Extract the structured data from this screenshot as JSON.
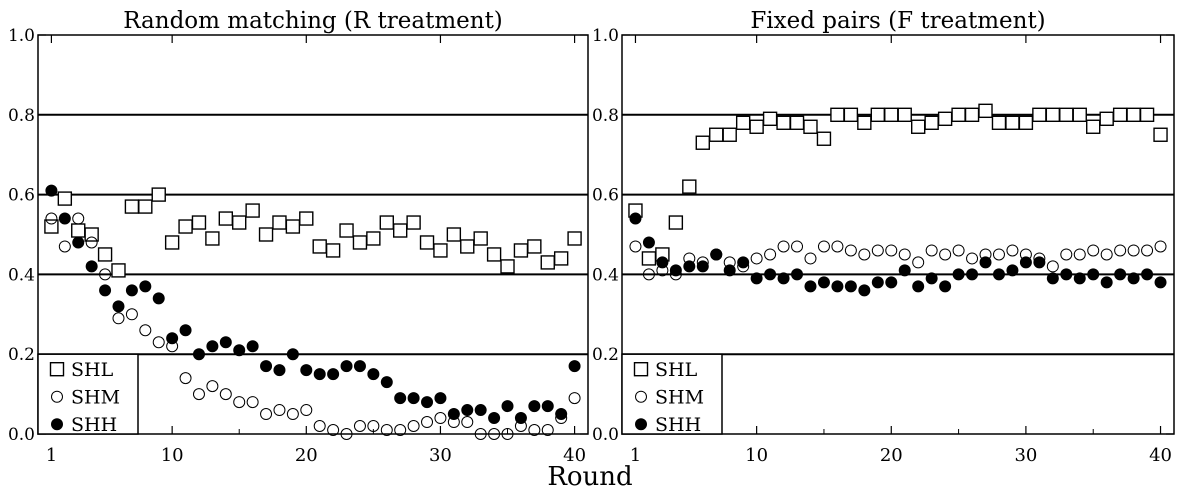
{
  "xlabel": "Round",
  "chart_data": [
    {
      "type": "scatter",
      "title": "Random matching (R treatment)",
      "xlabel": "Round",
      "ylabel": "",
      "xlim": [
        0,
        41
      ],
      "ylim": [
        0,
        1
      ],
      "x_ticks": [
        "1",
        "10",
        "20",
        "30",
        "40"
      ],
      "y_ticks": [
        "0.0",
        "0.2",
        "0.4",
        "0.6",
        "0.8",
        "1.0"
      ],
      "horizontal_lines": [
        0.2,
        0.4,
        0.6,
        0.8
      ],
      "grid": false,
      "legend_position": "bottom-left",
      "series": [
        {
          "name": "SHL",
          "marker": "open-square",
          "x": [
            1,
            2,
            3,
            4,
            5,
            6,
            7,
            8,
            9,
            10,
            11,
            12,
            13,
            14,
            15,
            16,
            17,
            18,
            19,
            20,
            21,
            22,
            23,
            24,
            25,
            26,
            27,
            28,
            29,
            30,
            31,
            32,
            33,
            34,
            35,
            36,
            37,
            38,
            39,
            40
          ],
          "y": [
            0.52,
            0.59,
            0.51,
            0.5,
            0.45,
            0.41,
            0.57,
            0.57,
            0.6,
            0.48,
            0.52,
            0.53,
            0.49,
            0.54,
            0.53,
            0.56,
            0.5,
            0.53,
            0.52,
            0.54,
            0.47,
            0.46,
            0.51,
            0.48,
            0.49,
            0.53,
            0.51,
            0.53,
            0.48,
            0.46,
            0.5,
            0.47,
            0.49,
            0.45,
            0.42,
            0.46,
            0.47,
            0.43,
            0.44,
            0.49
          ]
        },
        {
          "name": "SHM",
          "marker": "open-circle",
          "x": [
            1,
            2,
            3,
            4,
            5,
            6,
            7,
            8,
            9,
            10,
            11,
            12,
            13,
            14,
            15,
            16,
            17,
            18,
            19,
            20,
            21,
            22,
            23,
            24,
            25,
            26,
            27,
            28,
            29,
            30,
            31,
            32,
            33,
            34,
            35,
            36,
            37,
            38,
            39,
            40
          ],
          "y": [
            0.54,
            0.47,
            0.54,
            0.48,
            0.4,
            0.29,
            0.3,
            0.26,
            0.23,
            0.22,
            0.14,
            0.1,
            0.12,
            0.1,
            0.08,
            0.08,
            0.05,
            0.06,
            0.05,
            0.06,
            0.02,
            0.01,
            0.0,
            0.02,
            0.02,
            0.01,
            0.01,
            0.02,
            0.03,
            0.04,
            0.03,
            0.03,
            0.0,
            0.0,
            0.0,
            0.02,
            0.01,
            0.01,
            0.04,
            0.09
          ]
        },
        {
          "name": "SHH",
          "marker": "filled-circle",
          "x": [
            1,
            2,
            3,
            4,
            5,
            6,
            7,
            8,
            9,
            10,
            11,
            12,
            13,
            14,
            15,
            16,
            17,
            18,
            19,
            20,
            21,
            22,
            23,
            24,
            25,
            26,
            27,
            28,
            29,
            30,
            31,
            32,
            33,
            34,
            35,
            36,
            37,
            38,
            39,
            40
          ],
          "y": [
            0.61,
            0.54,
            0.48,
            0.42,
            0.36,
            0.32,
            0.36,
            0.37,
            0.34,
            0.24,
            0.26,
            0.2,
            0.22,
            0.23,
            0.21,
            0.22,
            0.17,
            0.16,
            0.2,
            0.16,
            0.15,
            0.15,
            0.17,
            0.17,
            0.15,
            0.13,
            0.09,
            0.09,
            0.08,
            0.09,
            0.05,
            0.06,
            0.06,
            0.04,
            0.07,
            0.04,
            0.07,
            0.07,
            0.05,
            0.17
          ]
        }
      ]
    },
    {
      "type": "scatter",
      "title": "Fixed pairs (F treatment)",
      "xlabel": "Round",
      "ylabel": "",
      "xlim": [
        0,
        41
      ],
      "ylim": [
        0,
        1
      ],
      "x_ticks": [
        "1",
        "10",
        "20",
        "30",
        "40"
      ],
      "y_ticks": [
        "0.0",
        "0.2",
        "0.4",
        "0.6",
        "0.8",
        "1.0"
      ],
      "horizontal_lines": [
        0.2,
        0.4,
        0.6,
        0.8
      ],
      "grid": false,
      "legend_position": "bottom-left",
      "series": [
        {
          "name": "SHL",
          "marker": "open-square",
          "x": [
            1,
            2,
            3,
            4,
            5,
            6,
            7,
            8,
            9,
            10,
            11,
            12,
            13,
            14,
            15,
            16,
            17,
            18,
            19,
            20,
            21,
            22,
            23,
            24,
            25,
            26,
            27,
            28,
            29,
            30,
            31,
            32,
            33,
            34,
            35,
            36,
            37,
            38,
            39,
            40
          ],
          "y": [
            0.56,
            0.44,
            0.45,
            0.53,
            0.62,
            0.73,
            0.75,
            0.75,
            0.78,
            0.77,
            0.79,
            0.78,
            0.78,
            0.77,
            0.74,
            0.8,
            0.8,
            0.78,
            0.8,
            0.8,
            0.8,
            0.77,
            0.78,
            0.79,
            0.8,
            0.8,
            0.81,
            0.78,
            0.78,
            0.78,
            0.8,
            0.8,
            0.8,
            0.8,
            0.77,
            0.79,
            0.8,
            0.8,
            0.8,
            0.75
          ]
        },
        {
          "name": "SHM",
          "marker": "open-circle",
          "x": [
            1,
            2,
            3,
            4,
            5,
            6,
            7,
            8,
            9,
            10,
            11,
            12,
            13,
            14,
            15,
            16,
            17,
            18,
            19,
            20,
            21,
            22,
            23,
            24,
            25,
            26,
            27,
            28,
            29,
            30,
            31,
            32,
            33,
            34,
            35,
            36,
            37,
            38,
            39,
            40
          ],
          "y": [
            0.47,
            0.4,
            0.41,
            0.4,
            0.44,
            0.43,
            0.45,
            0.43,
            0.42,
            0.44,
            0.45,
            0.47,
            0.47,
            0.44,
            0.47,
            0.47,
            0.46,
            0.45,
            0.46,
            0.46,
            0.45,
            0.43,
            0.46,
            0.45,
            0.46,
            0.44,
            0.45,
            0.45,
            0.46,
            0.45,
            0.44,
            0.42,
            0.45,
            0.45,
            0.46,
            0.45,
            0.46,
            0.46,
            0.46,
            0.47
          ]
        },
        {
          "name": "SHH",
          "marker": "filled-circle",
          "x": [
            1,
            2,
            3,
            4,
            5,
            6,
            7,
            8,
            9,
            10,
            11,
            12,
            13,
            14,
            15,
            16,
            17,
            18,
            19,
            20,
            21,
            22,
            23,
            24,
            25,
            26,
            27,
            28,
            29,
            30,
            31,
            32,
            33,
            34,
            35,
            36,
            37,
            38,
            39,
            40
          ],
          "y": [
            0.54,
            0.48,
            0.43,
            0.41,
            0.42,
            0.42,
            0.45,
            0.41,
            0.43,
            0.39,
            0.4,
            0.39,
            0.4,
            0.37,
            0.38,
            0.37,
            0.37,
            0.36,
            0.38,
            0.38,
            0.41,
            0.37,
            0.39,
            0.37,
            0.4,
            0.4,
            0.43,
            0.4,
            0.41,
            0.43,
            0.43,
            0.39,
            0.4,
            0.39,
            0.4,
            0.38,
            0.4,
            0.39,
            0.4,
            0.38
          ]
        }
      ]
    }
  ]
}
